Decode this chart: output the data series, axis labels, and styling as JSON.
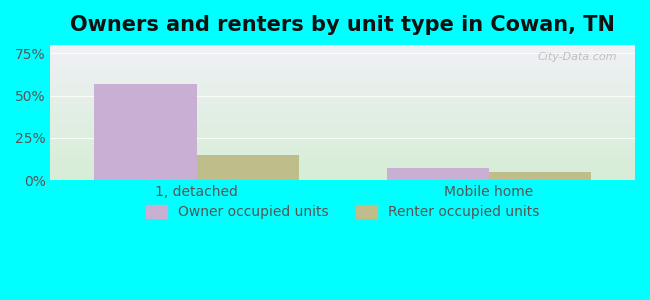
{
  "title": "Owners and renters by unit type in Cowan, TN",
  "categories": [
    "1, detached",
    "Mobile home"
  ],
  "owner_values": [
    57,
    7
  ],
  "renter_values": [
    15,
    5
  ],
  "owner_color": "#c9afd4",
  "renter_color": "#bfbe8a",
  "owner_label": "Owner occupied units",
  "renter_label": "Renter occupied units",
  "ylim": [
    0,
    0.8
  ],
  "yticks": [
    0,
    0.25,
    0.5,
    0.75
  ],
  "ytick_labels": [
    "0%",
    "25%",
    "50%",
    "75%"
  ],
  "bar_width": 0.35,
  "bg_top_color": "#eff0f5",
  "bg_bottom_color": "#d5edd5",
  "outer_color": "#00ffff",
  "title_fontsize": 15,
  "tick_fontsize": 10,
  "legend_fontsize": 10,
  "watermark": "City-Data.com"
}
